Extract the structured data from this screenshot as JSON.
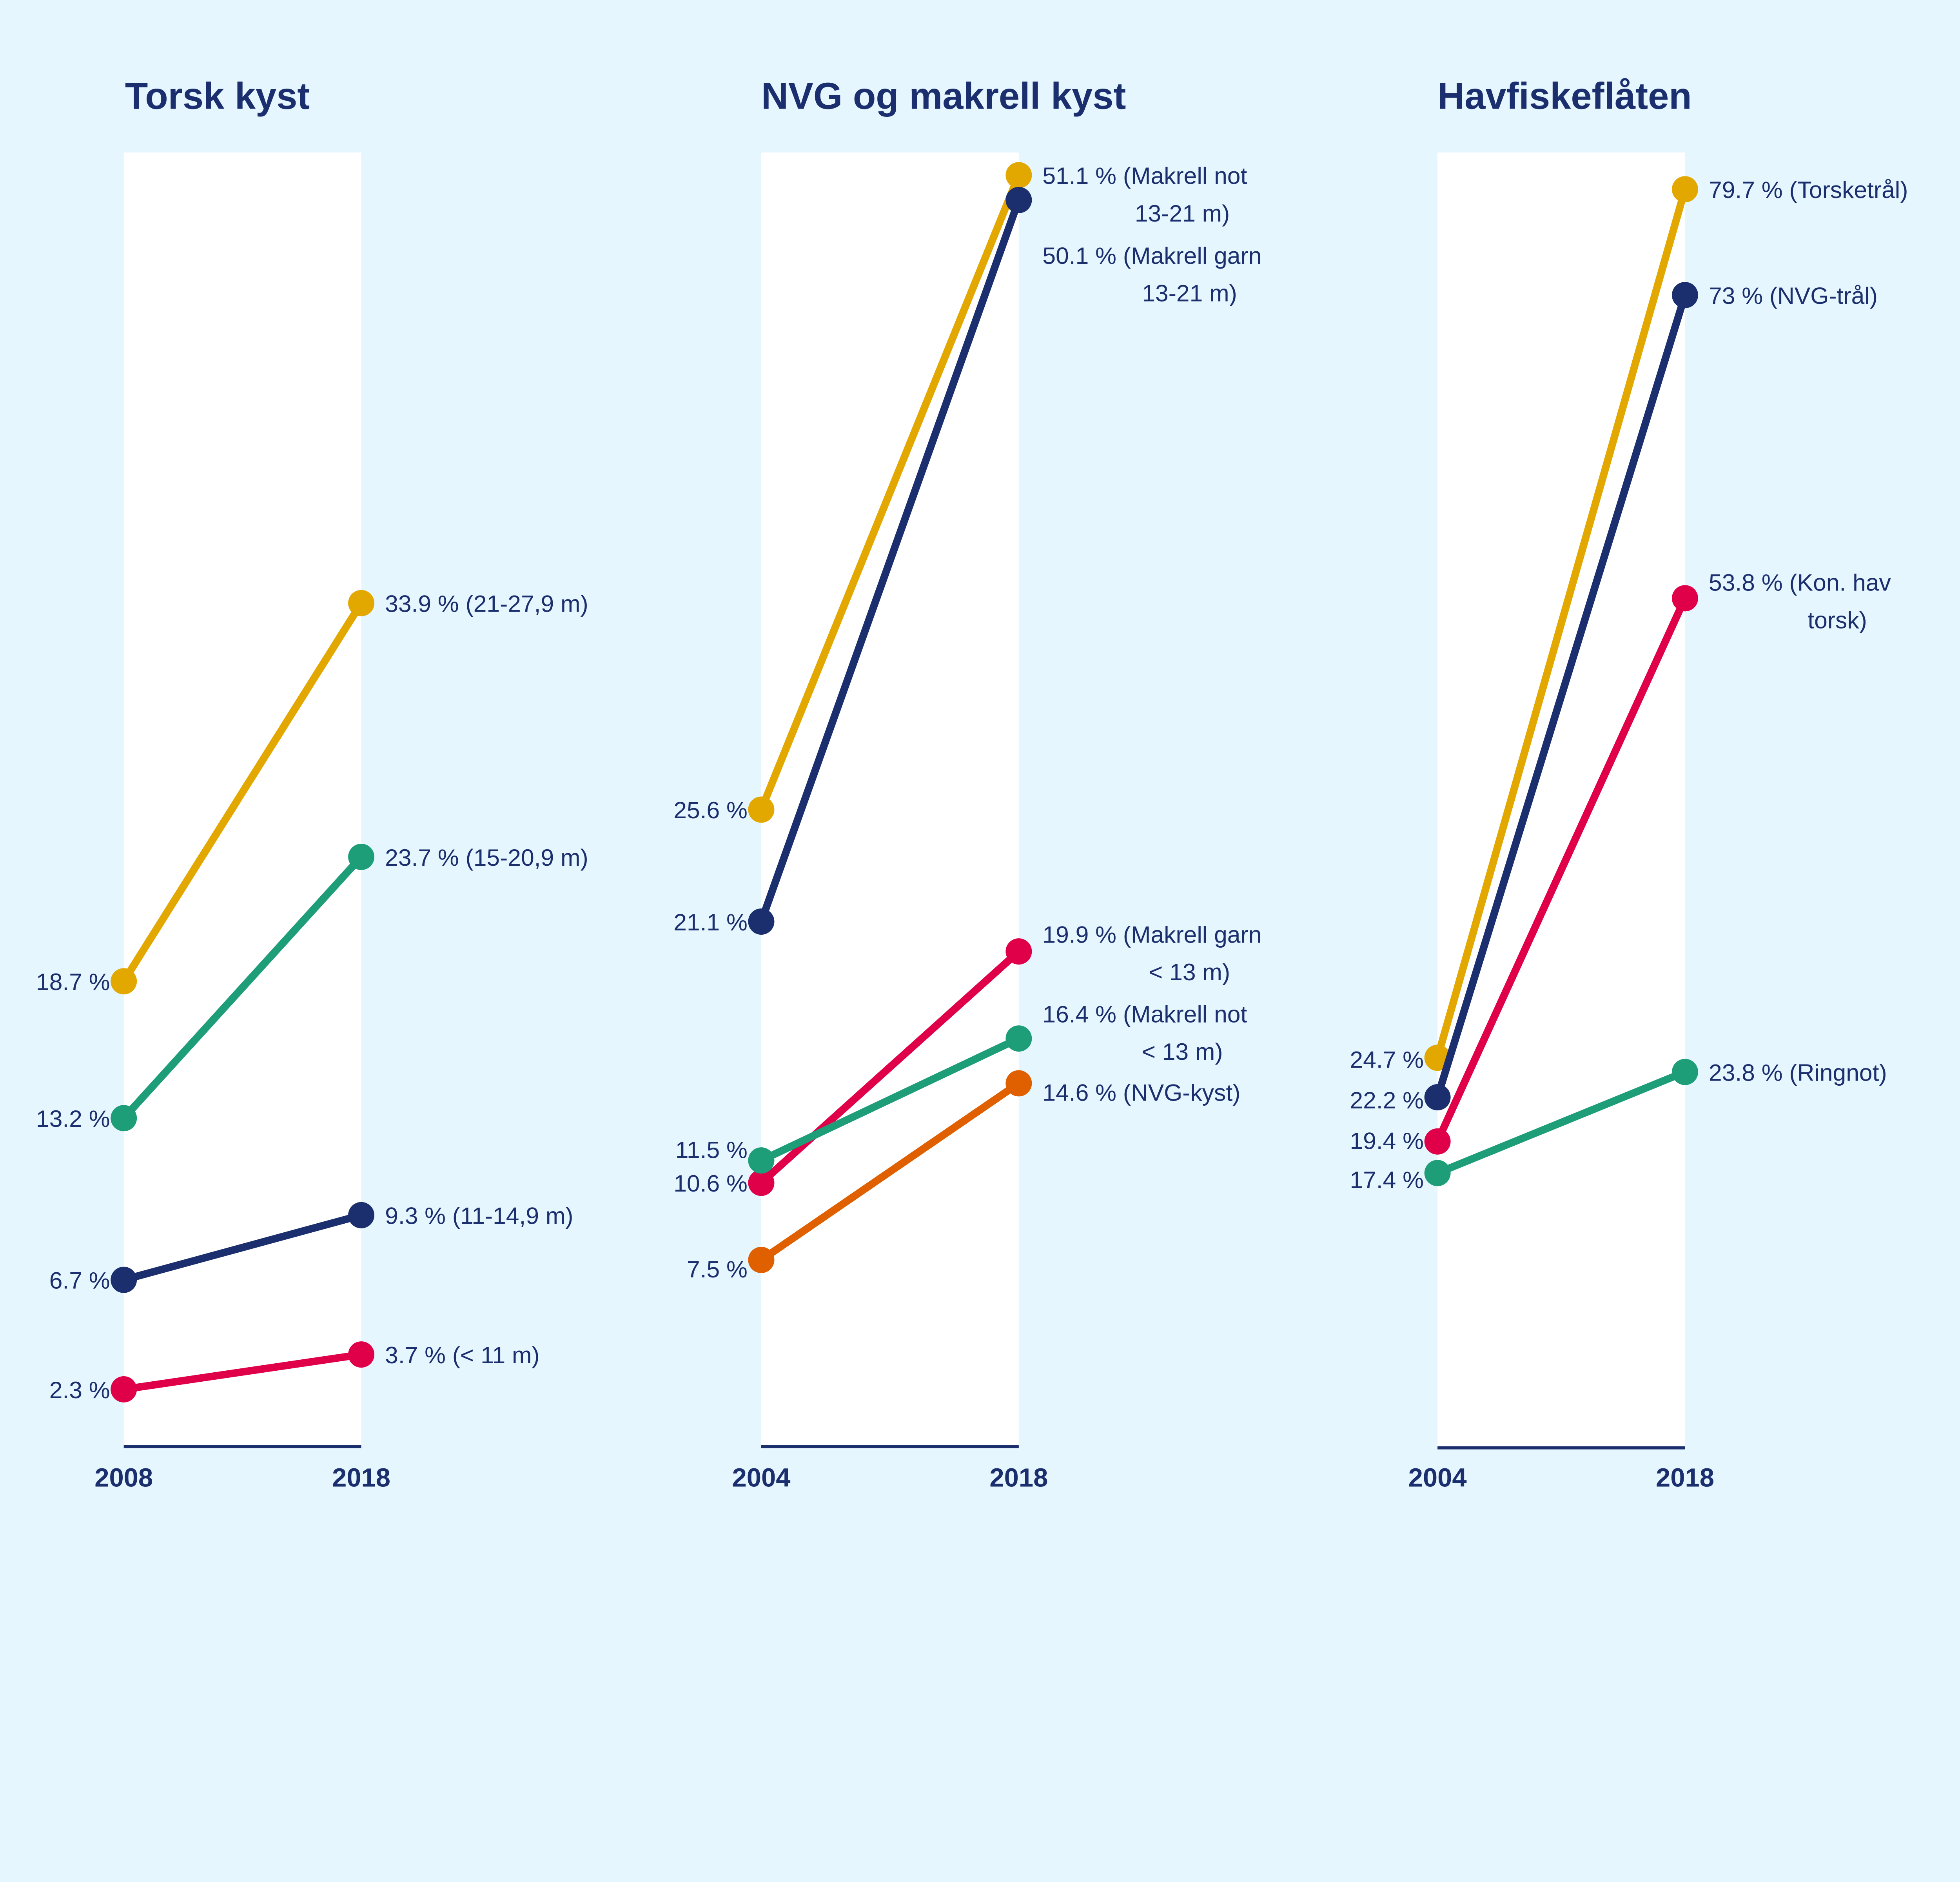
{
  "colors": {
    "background": "#e6f6fe",
    "panel": "#ffffff",
    "text": "#1b2f6e",
    "yellow": "#e3a800",
    "green": "#1e9e78",
    "navy": "#1b2f6e",
    "red": "#e0004a",
    "orange": "#e06000"
  },
  "chart_data": [
    {
      "type": "line",
      "title": "Torsk kyst",
      "categories": [
        "2008",
        "2018"
      ],
      "ylim": [
        0,
        52
      ],
      "grid": false,
      "series": [
        {
          "name": "21-27,9 m",
          "color": "#e3a800",
          "values": [
            18.7,
            33.9
          ],
          "start_label": "18.7 %",
          "end_label": [
            "33.9 % (21-27,9 m)"
          ]
        },
        {
          "name": "15-20,9 m",
          "color": "#1e9e78",
          "values": [
            13.2,
            23.7
          ],
          "start_label": "13.2 %",
          "end_label": [
            "23.7 % (15-20,9 m)"
          ]
        },
        {
          "name": "11-14,9 m",
          "color": "#1b2f6e",
          "values": [
            6.7,
            9.3
          ],
          "start_label": "6.7 %",
          "end_label": [
            "9.3 % (11-14,9 m)"
          ]
        },
        {
          "name": "< 11 m",
          "color": "#e0004a",
          "values": [
            2.3,
            3.7
          ],
          "start_label": "2.3 %",
          "end_label": [
            "3.7 % (< 11 m)"
          ]
        }
      ]
    },
    {
      "type": "line",
      "title": "NVG og makrell kyst",
      "categories": [
        "2004",
        "2018"
      ],
      "ylim": [
        0,
        52
      ],
      "grid": false,
      "series": [
        {
          "name": "Makrell not 13-21 m",
          "color": "#e3a800",
          "values": [
            25.6,
            51.1
          ],
          "start_label": "25.6 %",
          "end_label": [
            "51.1 % (Makrell not",
            "13-21 m)"
          ]
        },
        {
          "name": "Makrell garn 13-21 m",
          "color": "#1b2f6e",
          "values": [
            21.1,
            50.1
          ],
          "start_label": "21.1 %",
          "end_label": [
            "50.1 % (Makrell garn",
            "13-21 m)"
          ]
        },
        {
          "name": "Makrell garn < 13 m",
          "color": "#e0004a",
          "values": [
            10.6,
            19.9
          ],
          "start_label": "10.6 %",
          "end_label": [
            "19.9 % (Makrell garn",
            "< 13 m)"
          ]
        },
        {
          "name": "Makrell not < 13 m",
          "color": "#1e9e78",
          "values": [
            11.5,
            16.4
          ],
          "start_label": "11.5 %",
          "end_label": [
            "16.4 % (Makrell not",
            "< 13 m)"
          ]
        },
        {
          "name": "NVG-kyst",
          "color": "#e06000",
          "values": [
            7.5,
            14.6
          ],
          "start_label": "7.5 %",
          "end_label": [
            "14.6 % (NVG-kyst)"
          ]
        }
      ]
    },
    {
      "type": "line",
      "title": "Havfiskeflåten",
      "categories": [
        "2004",
        "2018"
      ],
      "ylim": [
        0,
        82
      ],
      "grid": false,
      "series": [
        {
          "name": "Torsketrål",
          "color": "#e3a800",
          "values": [
            24.7,
            79.7
          ],
          "start_label": "24.7 %",
          "end_label": [
            "79.7 % (Torsketrål)"
          ]
        },
        {
          "name": "NVG-trål",
          "color": "#1b2f6e",
          "values": [
            22.2,
            73
          ],
          "start_label": "22.2 %",
          "end_label": [
            "73 % (NVG-trål)"
          ]
        },
        {
          "name": "Kon. hav torsk",
          "color": "#e0004a",
          "values": [
            19.4,
            53.8
          ],
          "start_label": "19.4 %",
          "end_label": [
            "53.8 % (Kon. hav",
            "torsk)"
          ]
        },
        {
          "name": "Ringnot",
          "color": "#1e9e78",
          "values": [
            17.4,
            23.8
          ],
          "start_label": "17.4 %",
          "end_label": [
            "23.8 % (Ringnot)"
          ]
        }
      ]
    }
  ]
}
